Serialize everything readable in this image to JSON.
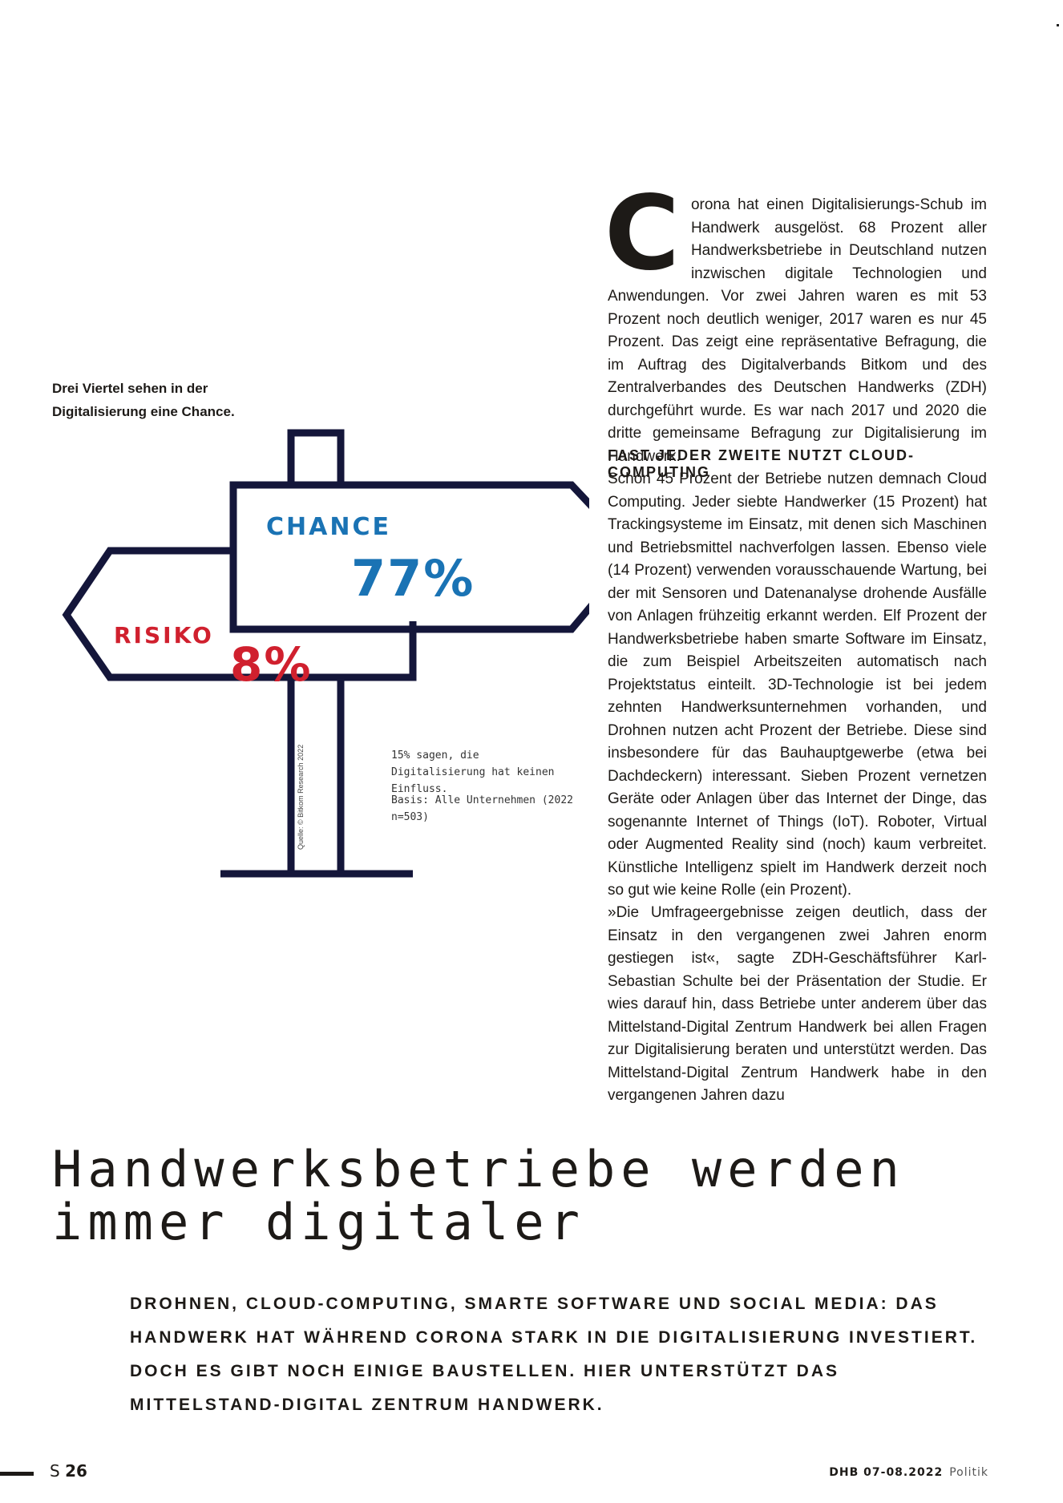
{
  "infographic": {
    "caption": "Drei Viertel sehen in der Digitalisierung eine Chance.",
    "chance_label": "CHANCE",
    "chance_value": "77%",
    "risiko_label": "RISIKO",
    "risiko_value": "8%",
    "source": "Quelle: © Bitkom Research 2022",
    "note_no_influence": "15% sagen, die Digitalisierung hat keinen Einfluss.",
    "note_basis": "Basis: Alle Unternehmen (2022 n=503)",
    "colors": {
      "chance": "#1a73b4",
      "risiko": "#d0202e",
      "outline": "#14163a"
    }
  },
  "article": {
    "dropcap": "C",
    "intro": "orona hat einen Digitalisierungs-Schub im Handwerk ausgelöst. 68 Prozent aller Handwerksbetriebe in Deutschland nutzen inzwischen digitale Technologien und Anwendungen. Vor zwei Jahren waren es mit 53 Prozent noch deutlich weniger, 2017 waren es nur 45 Prozent. Das zeigt eine repräsentative Befragung, die im Auftrag des Digitalverbands Bitkom und des Zentralverbandes des Deutschen Handwerks (ZDH) durchgeführt wurde. Es war nach 2017 und 2020 die dritte gemeinsame Befragung zur Digitalisierung im Handwerk.",
    "subhead": "FAST JEDER ZWEITE NUTZT CLOUD-COMPUTING",
    "section_body": "Schon 45 Prozent der Betriebe nutzen demnach Cloud Computing. Jeder siebte Handwerker (15 Prozent) hat Trackingsysteme im Einsatz, mit denen sich Maschinen und Betriebsmittel nachverfolgen lassen. Ebenso viele (14 Prozent) verwenden vorausschauende Wartung, bei der mit Sensoren und Datenanalyse drohende Ausfälle von Anlagen frühzeitig erkannt werden. Elf Prozent der Handwerksbetriebe haben smarte Software im Einsatz, die zum Beispiel Arbeitszeiten automatisch nach Projektstatus einteilt. 3D-Technologie ist bei jedem zehnten Handwerksunternehmen vorhanden, und Drohnen nutzen acht Prozent der Betriebe. Diese sind insbesondere für das Bauhauptgewerbe (etwa bei Dachdeckern) interessant. Sieben Prozent vernetzen Geräte oder Anlagen über das Internet der Dinge, das sogenannte Internet of Things (IoT). Roboter, Virtual oder Augmented Reality sind (noch) kaum verbreitet. Künstliche Intelligenz spielt im Handwerk derzeit noch so gut wie keine Rolle (ein Prozent).",
    "quote_paragraph": "»Die Umfrageergebnisse zeigen deutlich, dass der Einsatz in den vergangenen zwei Jahren enorm gestiegen ist«, sagte ZDH-Geschäftsführer Karl-Sebastian Schulte bei der Präsentation der Studie. Er wies darauf hin, dass Betriebe unter anderem über das Mittelstand-Digital Zentrum Handwerk bei allen Fragen zur Digitalisierung beraten und unterstützt werden. Das Mittelstand-Digital Zentrum Handwerk habe in den vergangenen Jahren dazu",
    "headline": "Handwerksbetriebe werden immer digitaler",
    "lead": "DROHNEN, CLOUD-COMPUTING, SMARTE SOFTWARE UND SOCIAL MEDIA: DAS HANDWERK HAT WÄHREND CORONA STARK IN DIE DIGITALISIERUNG INVESTIERT. DOCH ES GIBT NOCH EINIGE BAUSTELLEN. HIER UNTERSTÜTZT DAS MITTELSTAND-DIGITAL ZENTRUM HANDWERK."
  },
  "footer": {
    "page_prefix": "S",
    "page_number": "26",
    "publication": "DHB 07-08.2022",
    "section": "Politik"
  }
}
